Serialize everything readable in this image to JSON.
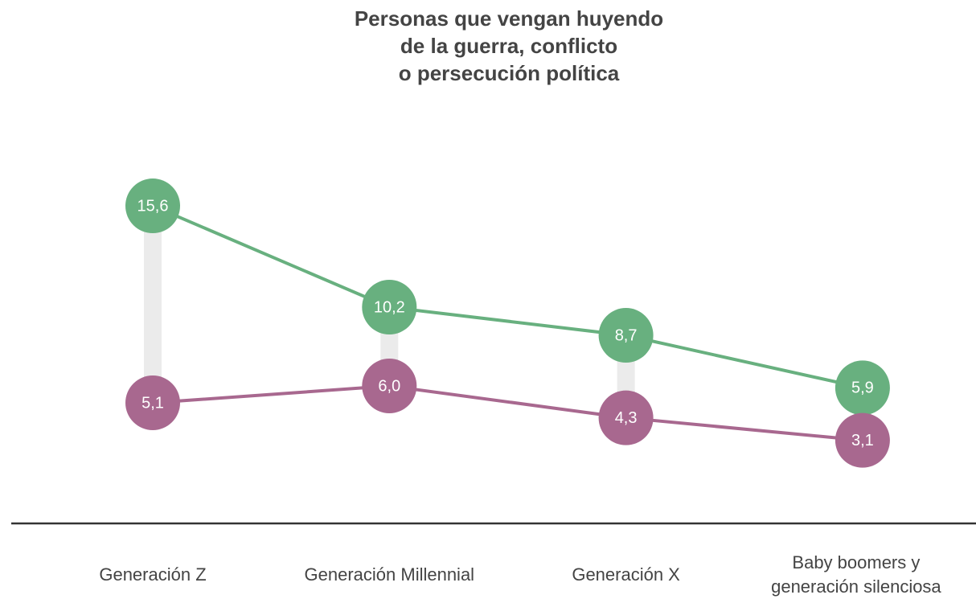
{
  "chart_data": {
    "type": "dumbbell-line",
    "title": "Personas que vengan huyendo\nde la guerra, conflicto\no persecución política",
    "categories": [
      "Generación Z",
      "Generación Millennial",
      "Generación X",
      "Baby boomers y\ngeneración silenciosa"
    ],
    "series": [
      {
        "color": "#68b07f",
        "values": [
          15.6,
          10.2,
          8.7,
          5.9
        ],
        "value_labels": [
          "15,6",
          "10,2",
          "8,7",
          "5,9"
        ]
      },
      {
        "color": "#a8688f",
        "values": [
          5.1,
          6.0,
          4.3,
          3.1
        ],
        "value_labels": [
          "5,1",
          "6,0",
          "4,3",
          "3,1"
        ]
      }
    ]
  }
}
